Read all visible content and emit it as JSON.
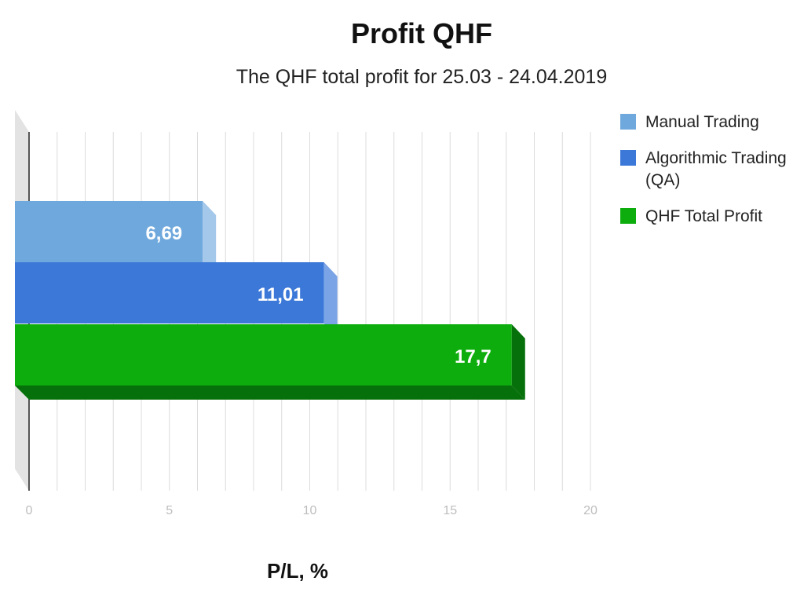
{
  "chart_data": {
    "type": "bar",
    "orientation": "horizontal",
    "title": "Profit QHF",
    "subtitle": "The QHF total profit for 25.03 - 24.04.2019",
    "xlabel": "P/L, %",
    "ylabel": "",
    "xlim": [
      0,
      20
    ],
    "ticks": [
      "0",
      "5",
      "10",
      "15",
      "20"
    ],
    "grid": true,
    "legend_position": "right",
    "series": [
      {
        "name": "Manual Trading",
        "value": 6.69,
        "label": "6,69",
        "color": "#6fa8dc",
        "top_color": "#a4c8ea"
      },
      {
        "name": "Algorithmic Trading (QA)",
        "value": 11.01,
        "label": "11,01",
        "color": "#3c78d8",
        "top_color": "#7ba4e6"
      },
      {
        "name": "QHF Total Profit",
        "value": 17.7,
        "label": "17,7",
        "color": "#0ead0e",
        "top_color": "#06700a"
      }
    ]
  }
}
